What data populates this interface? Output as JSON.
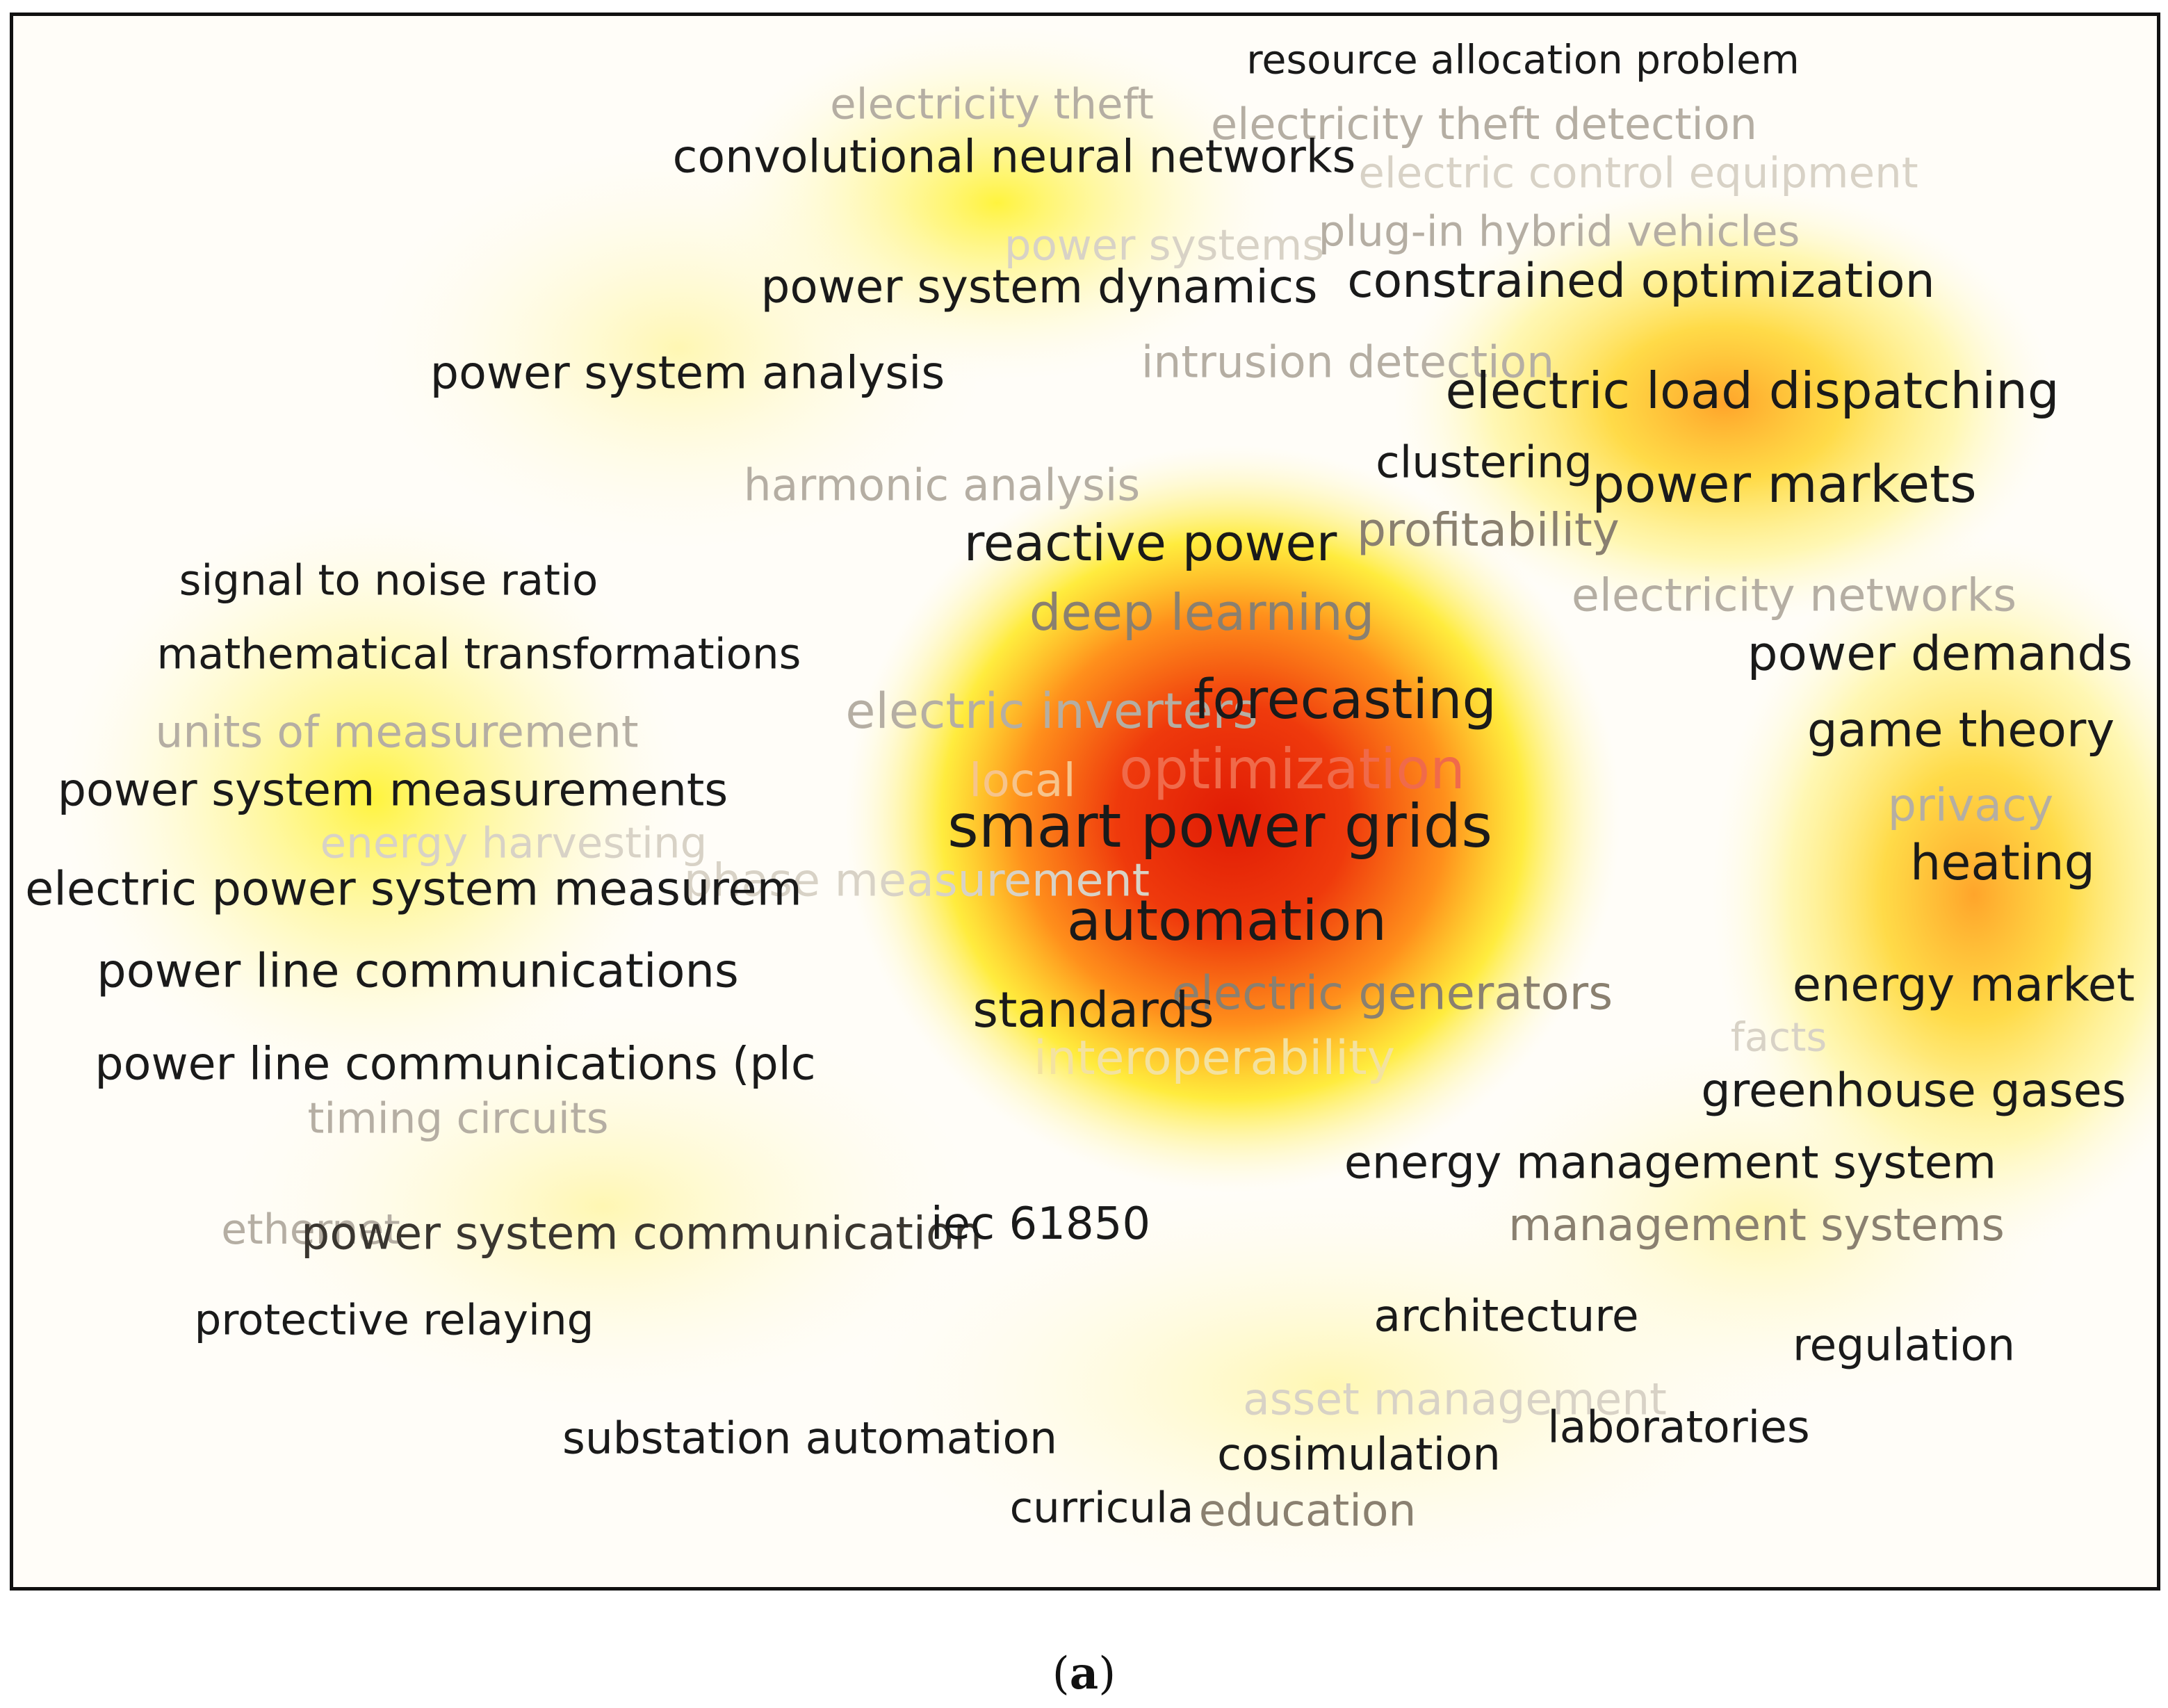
{
  "caption": {
    "open": "(",
    "letter": "a",
    "close": ")"
  },
  "keywords": [
    {
      "id": "resource-allocation-problem",
      "text": "resource allocation problem"
    },
    {
      "id": "electricity-theft",
      "text": "electricity theft"
    },
    {
      "id": "electricity-theft-detection",
      "text": "electricity theft detection"
    },
    {
      "id": "convolutional-neural-networks",
      "text": "convolutional neural networks"
    },
    {
      "id": "electric-control-equipment",
      "text": "electric control equipment"
    },
    {
      "id": "power-systems-faint",
      "text": "power systems"
    },
    {
      "id": "plug-in-hybrid-vehicles",
      "text": "plug-in hybrid vehicles"
    },
    {
      "id": "power-system-dynamics",
      "text": "power system dynamics"
    },
    {
      "id": "constrained-optimization",
      "text": "constrained optimization"
    },
    {
      "id": "power-system-analysis",
      "text": "power system analysis"
    },
    {
      "id": "intrusion-detection",
      "text": "intrusion detection"
    },
    {
      "id": "electric-load-dispatching",
      "text": "electric load dispatching"
    },
    {
      "id": "harmonic-analysis",
      "text": "harmonic analysis"
    },
    {
      "id": "clustering",
      "text": "clustering"
    },
    {
      "id": "power-markets",
      "text": "power markets"
    },
    {
      "id": "reactive-power",
      "text": "reactive power"
    },
    {
      "id": "profitability",
      "text": "profitability"
    },
    {
      "id": "signal-to-noise-ratio",
      "text": "signal to noise ratio"
    },
    {
      "id": "electricity-networks",
      "text": "electricity networks"
    },
    {
      "id": "deep-learning",
      "text": "deep learning"
    },
    {
      "id": "mathematical-transformations",
      "text": "mathematical transformations"
    },
    {
      "id": "power-demands",
      "text": "power demands"
    },
    {
      "id": "electric-inverters",
      "text": "electric inverters"
    },
    {
      "id": "forecasting",
      "text": "forecasting"
    },
    {
      "id": "units-of-measurement",
      "text": "units of measurement"
    },
    {
      "id": "game-theory",
      "text": "game theory"
    },
    {
      "id": "optimization",
      "text": "optimization"
    },
    {
      "id": "local-faint",
      "text": "local"
    },
    {
      "id": "power-system-measurements",
      "text": "power system measurements"
    },
    {
      "id": "privacy",
      "text": "privacy"
    },
    {
      "id": "energy-harvesting",
      "text": "energy harvesting"
    },
    {
      "id": "smart-power-grids",
      "text": "smart power grids"
    },
    {
      "id": "phase-measurement",
      "text": "phase measurement"
    },
    {
      "id": "heating",
      "text": "heating"
    },
    {
      "id": "electric-power-system-measurem",
      "text": "electric power system measurem"
    },
    {
      "id": "automation",
      "text": "automation"
    },
    {
      "id": "power-line-communications",
      "text": "power line communications"
    },
    {
      "id": "energy-market",
      "text": "energy market"
    },
    {
      "id": "electric-generators",
      "text": "electric generators"
    },
    {
      "id": "standards",
      "text": "standards"
    },
    {
      "id": "facts",
      "text": "facts"
    },
    {
      "id": "interoperability",
      "text": "interoperability"
    },
    {
      "id": "power-line-communications-plc",
      "text": "power line communications (plc"
    },
    {
      "id": "greenhouse-gases",
      "text": "greenhouse gases"
    },
    {
      "id": "timing-circuits",
      "text": "timing circuits"
    },
    {
      "id": "energy-management-system",
      "text": "energy management system"
    },
    {
      "id": "ethernet",
      "text": "ethernet"
    },
    {
      "id": "power-system-communication",
      "text": "power system communication"
    },
    {
      "id": "iec-61850",
      "text": "iec 61850"
    },
    {
      "id": "management-systems",
      "text": "management systems"
    },
    {
      "id": "architecture",
      "text": "architecture"
    },
    {
      "id": "protective-relaying",
      "text": "protective relaying"
    },
    {
      "id": "regulation",
      "text": "regulation"
    },
    {
      "id": "asset-management",
      "text": "asset management"
    },
    {
      "id": "laboratories",
      "text": "laboratories"
    },
    {
      "id": "substation-automation",
      "text": "substation automation"
    },
    {
      "id": "cosimulation",
      "text": "cosimulation"
    },
    {
      "id": "curricula",
      "text": "curricula"
    },
    {
      "id": "education",
      "text": "education"
    }
  ],
  "colors": {
    "hot": "#e8220a",
    "warm": "#ff8a10",
    "yellow": "#fff200",
    "background": "#fffdf8",
    "text_dark": "#1a1a1a",
    "text_faded": "#b5aea3"
  }
}
